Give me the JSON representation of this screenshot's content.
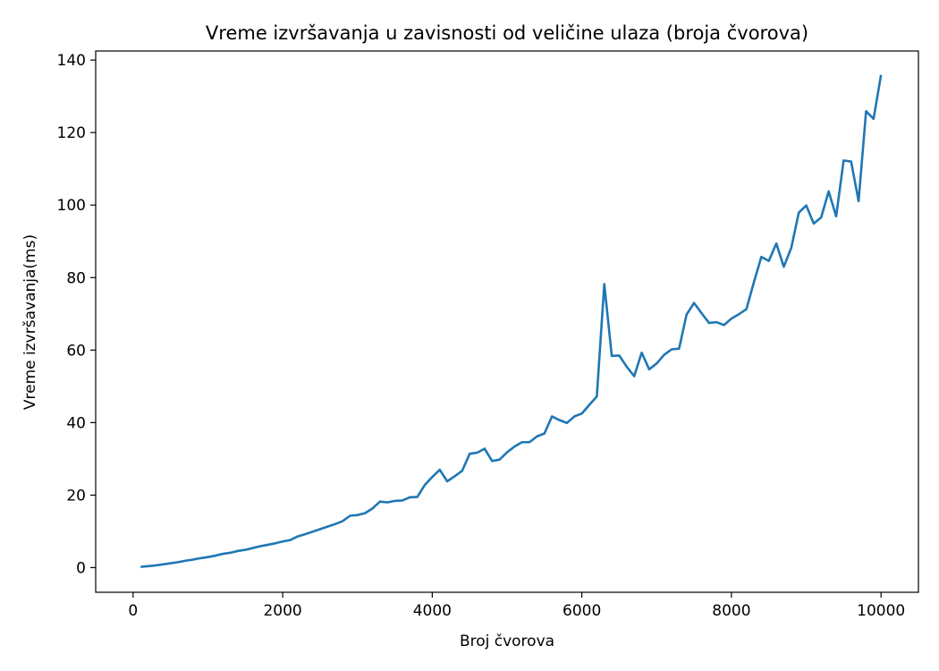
{
  "chart_data": {
    "type": "line",
    "title": "Vreme izvršavanja u zavisnosti od veličine ulaza (broja čvorova)",
    "xlabel": "Broj čvorova",
    "ylabel": "Vreme izvršavanja(ms)",
    "xlim": [
      -500,
      10500
    ],
    "ylim": [
      -6.8,
      142.5
    ],
    "xticks": [
      0,
      2000,
      4000,
      6000,
      8000,
      10000
    ],
    "yticks": [
      0,
      20,
      40,
      60,
      80,
      100,
      120,
      140
    ],
    "grid": false,
    "series": [
      {
        "color": "#1f77b4",
        "x": [
          100,
          200,
          300,
          400,
          500,
          600,
          700,
          800,
          900,
          1000,
          1100,
          1200,
          1300,
          1400,
          1500,
          1600,
          1700,
          1800,
          1900,
          2000,
          2100,
          2200,
          2300,
          2400,
          2500,
          2600,
          2700,
          2800,
          2900,
          3000,
          3100,
          3200,
          3300,
          3400,
          3500,
          3600,
          3700,
          3800,
          3900,
          4000,
          4100,
          4200,
          4300,
          4400,
          4500,
          4600,
          4700,
          4800,
          4900,
          5000,
          5100,
          5200,
          5300,
          5400,
          5500,
          5600,
          5700,
          5800,
          5900,
          6000,
          6100,
          6200,
          6300,
          6400,
          6500,
          6600,
          6700,
          6800,
          6900,
          7000,
          7100,
          7200,
          7300,
          7400,
          7500,
          7600,
          7700,
          7800,
          7900,
          8000,
          8100,
          8200,
          8300,
          8400,
          8500,
          8600,
          8700,
          8800,
          8900,
          9000,
          9100,
          9200,
          9300,
          9400,
          9500,
          9600,
          9700,
          9800,
          9900,
          10000
        ],
        "y": [
          0.2,
          0.4,
          0.6,
          0.9,
          1.2,
          1.5,
          1.9,
          2.2,
          2.6,
          2.9,
          3.3,
          3.8,
          4.1,
          4.6,
          4.9,
          5.4,
          5.9,
          6.3,
          6.7,
          7.2,
          7.6,
          8.6,
          9.2,
          9.9,
          10.6,
          11.3,
          12.0,
          12.8,
          14.3,
          14.5,
          15.0,
          16.3,
          18.2,
          18.0,
          18.4,
          18.5,
          19.4,
          19.5,
          22.8,
          25.0,
          27.0,
          23.8,
          25.2,
          26.7,
          31.4,
          31.7,
          32.8,
          29.4,
          29.8,
          31.8,
          33.4,
          34.6,
          34.6,
          36.2,
          37.0,
          41.7,
          40.7,
          39.9,
          41.7,
          42.5,
          44.9,
          47.2,
          78.2,
          58.4,
          58.5,
          55.4,
          52.8,
          59.3,
          54.7,
          56.3,
          58.7,
          60.2,
          60.4,
          69.8,
          73.0,
          70.2,
          67.5,
          67.7,
          66.9,
          68.7,
          69.9,
          71.3,
          78.7,
          85.7,
          84.6,
          89.4,
          83.0,
          88.2,
          97.9,
          99.9,
          94.9,
          96.6,
          103.8,
          96.9,
          112.3,
          112.0,
          101.1,
          125.9,
          123.8,
          135.9
        ]
      }
    ]
  }
}
